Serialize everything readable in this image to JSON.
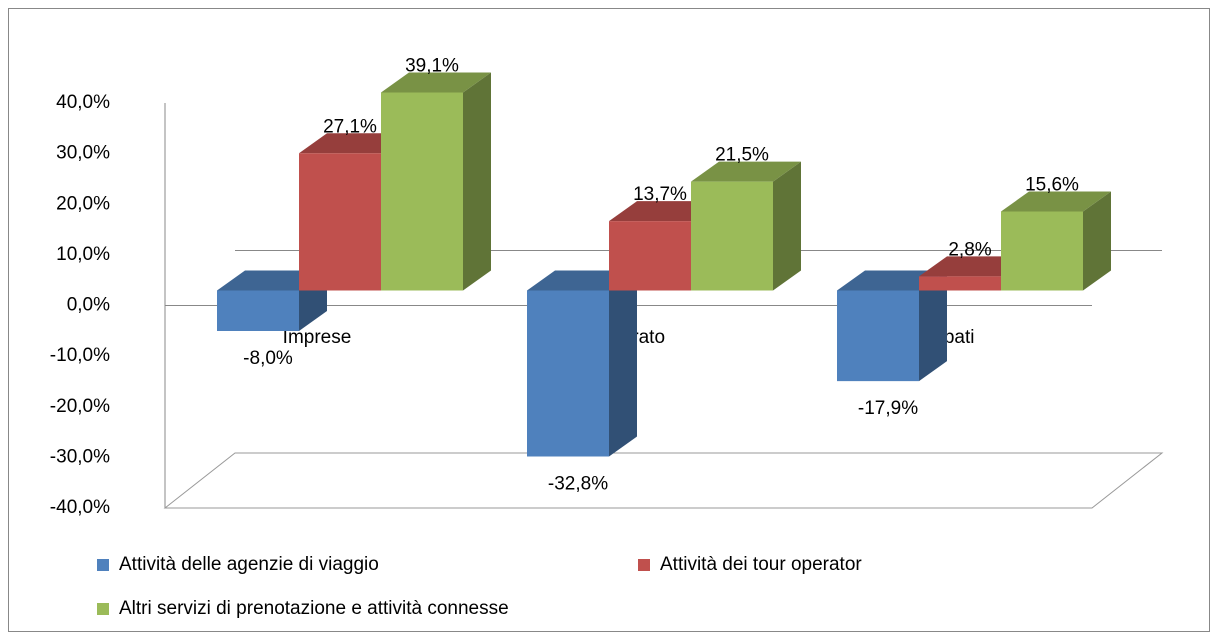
{
  "chart_data": {
    "type": "bar3d",
    "categories": [
      "Imprese",
      "Fatturato",
      "Occupati"
    ],
    "series": [
      {
        "name": "Attività delle agenzie di viaggio",
        "color": "#4f81bd",
        "values": [
          -8.0,
          -32.8,
          -17.9
        ],
        "value_labels": [
          "-8,0%",
          "-32,8%",
          "-17,9%"
        ]
      },
      {
        "name": "Attività dei tour operator",
        "color": "#c0504d",
        "values": [
          27.1,
          13.7,
          2.8
        ],
        "value_labels": [
          "27,1%",
          "13,7%",
          "2,8%"
        ]
      },
      {
        "name": "Altri servizi di prenotazione e attività connesse",
        "color": "#9bbb59",
        "values": [
          39.1,
          21.5,
          15.6
        ],
        "value_labels": [
          "39,1%",
          "21,5%",
          "15,6%"
        ]
      }
    ],
    "ylim": [
      -40,
      40
    ],
    "yticks": [
      {
        "value": -40,
        "label": "-40,0%"
      },
      {
        "value": -30,
        "label": "-30,0%"
      },
      {
        "value": -20,
        "label": "-20,0%"
      },
      {
        "value": -10,
        "label": "-10,0%"
      },
      {
        "value": 0,
        "label": "0,0%"
      },
      {
        "value": 10,
        "label": "10,0%"
      },
      {
        "value": 20,
        "label": "20,0%"
      },
      {
        "value": 30,
        "label": "30,0%"
      },
      {
        "value": 40,
        "label": "40,0%"
      }
    ],
    "legend": "bottom"
  }
}
